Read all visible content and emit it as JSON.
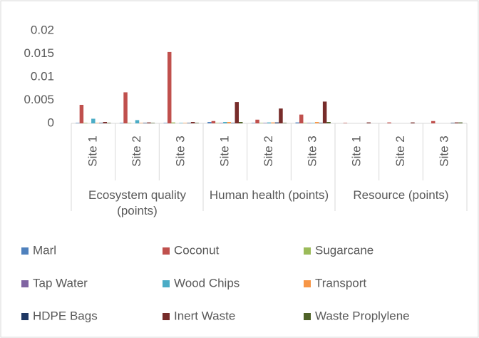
{
  "chart_data": {
    "type": "bar",
    "categories": [
      "Site 1",
      "Site 2",
      "Site 3",
      "Site 1",
      "Site 2",
      "Site 3",
      "Site 1",
      "Site 2",
      "Site 3"
    ],
    "groups": [
      {
        "name": "Ecosystem quality (points)",
        "size": 3
      },
      {
        "name": "Human health (points)",
        "size": 3
      },
      {
        "name": "Resource (points)",
        "size": 3
      }
    ],
    "series": [
      {
        "name": "Marl",
        "color": "#4f81bd",
        "values": [
          0.0001,
          0.0001,
          0.0001,
          0.0003,
          0.0001,
          0.0002,
          0,
          0,
          0
        ]
      },
      {
        "name": "Coconut",
        "color": "#c0504d",
        "values": [
          0.004,
          0.0067,
          0.0154,
          0.0005,
          0.0008,
          0.0019,
          0.0001,
          0.0002,
          0.0005
        ]
      },
      {
        "name": "Sugarcane",
        "color": "#9bbb59",
        "values": [
          0.0001,
          0.0001,
          0.0002,
          0.0001,
          0.0001,
          0.0001,
          0,
          0,
          0
        ]
      },
      {
        "name": "Tap Water",
        "color": "#8064a2",
        "values": [
          0,
          0,
          0,
          0.0001,
          0.0001,
          0.0001,
          0,
          0,
          0
        ]
      },
      {
        "name": "Wood Chips",
        "color": "#4bacc6",
        "values": [
          0.001,
          0.0007,
          0.0001,
          0.0003,
          0.0002,
          0.0001,
          0,
          0,
          0
        ]
      },
      {
        "name": "Transport",
        "color": "#f79646",
        "values": [
          0.0001,
          0.0001,
          0.0001,
          0.0003,
          0.0002,
          0.0003,
          0,
          0,
          0
        ]
      },
      {
        "name": "HDPE Bags",
        "color": "#1f3864",
        "values": [
          0.0001,
          0.0001,
          0.0001,
          0.0001,
          0.0002,
          0.0001,
          0,
          0,
          0.0001
        ]
      },
      {
        "name": "Inert Waste",
        "color": "#772c2a",
        "values": [
          0.0003,
          0.0002,
          0.0003,
          0.0046,
          0.0032,
          0.0047,
          0.0002,
          0.0002,
          0.0002
        ]
      },
      {
        "name": "Waste Proplylene",
        "color": "#4f6228",
        "values": [
          0.0001,
          0.0001,
          0.0001,
          0.0003,
          0.0001,
          0.0003,
          0,
          0,
          0.0002
        ]
      }
    ],
    "ylim": [
      0,
      0.02
    ],
    "yticks": [
      0,
      0.005,
      0.01,
      0.015,
      0.02
    ],
    "grid": false,
    "legend": "bottom"
  }
}
